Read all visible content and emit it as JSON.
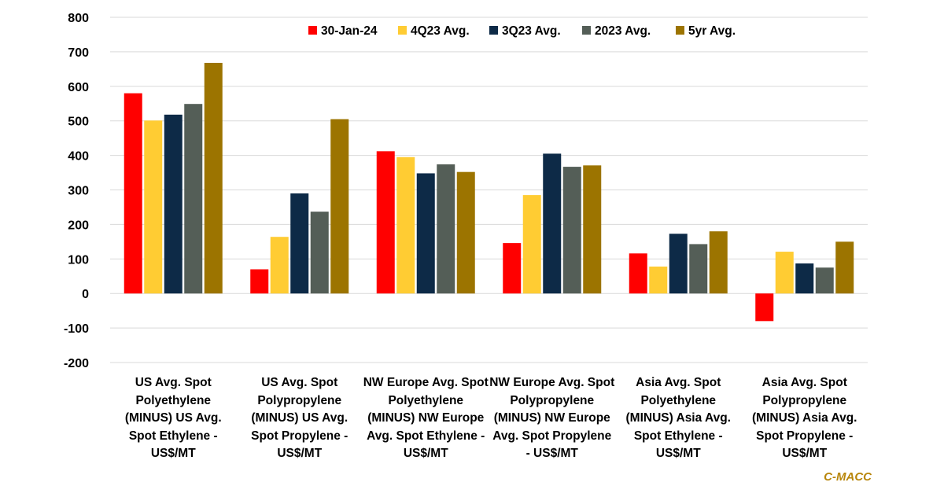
{
  "chart_data": {
    "type": "bar",
    "title": "",
    "xlabel": "",
    "ylabel": "",
    "ylim": [
      -200,
      800
    ],
    "yticks": [
      -200,
      -100,
      0,
      100,
      200,
      300,
      400,
      500,
      600,
      700,
      800
    ],
    "grid": true,
    "legend_position": "top-center",
    "categories": [
      "US Avg. Spot Polyethylene (MINUS) US Avg. Spot Ethylene - US$/MT",
      "US Avg. Spot Polypropylene (MINUS) US Avg. Spot Propylene - US$/MT",
      "NW Europe Avg. Spot Polyethylene (MINUS) NW Europe Avg. Spot Ethylene - US$/MT",
      "NW Europe Avg. Spot Polypropylene (MINUS) NW Europe Avg. Spot Propylene - US$/MT",
      "Asia Avg. Spot Polyethylene (MINUS) Asia Avg. Spot Ethylene - US$/MT",
      "Asia Avg. Spot Polypropylene (MINUS) Asia Avg. Spot Propylene - US$/MT"
    ],
    "series": [
      {
        "name": "30-Jan-24",
        "color": "#FF0000",
        "values": [
          580,
          70,
          412,
          146,
          116,
          -80
        ]
      },
      {
        "name": "4Q23 Avg.",
        "color": "#FFCC33",
        "values": [
          501,
          164,
          395,
          285,
          78,
          121
        ]
      },
      {
        "name": "3Q23 Avg.",
        "color": "#0D2A47",
        "values": [
          518,
          290,
          348,
          405,
          173,
          87
        ]
      },
      {
        "name": "2023 Avg.",
        "color": "#545E57",
        "values": [
          549,
          237,
          374,
          367,
          143,
          75
        ]
      },
      {
        "name": "5yr Avg.",
        "color": "#9C7400",
        "values": [
          668,
          505,
          352,
          371,
          180,
          150
        ]
      }
    ]
  },
  "source": "C-MACC"
}
